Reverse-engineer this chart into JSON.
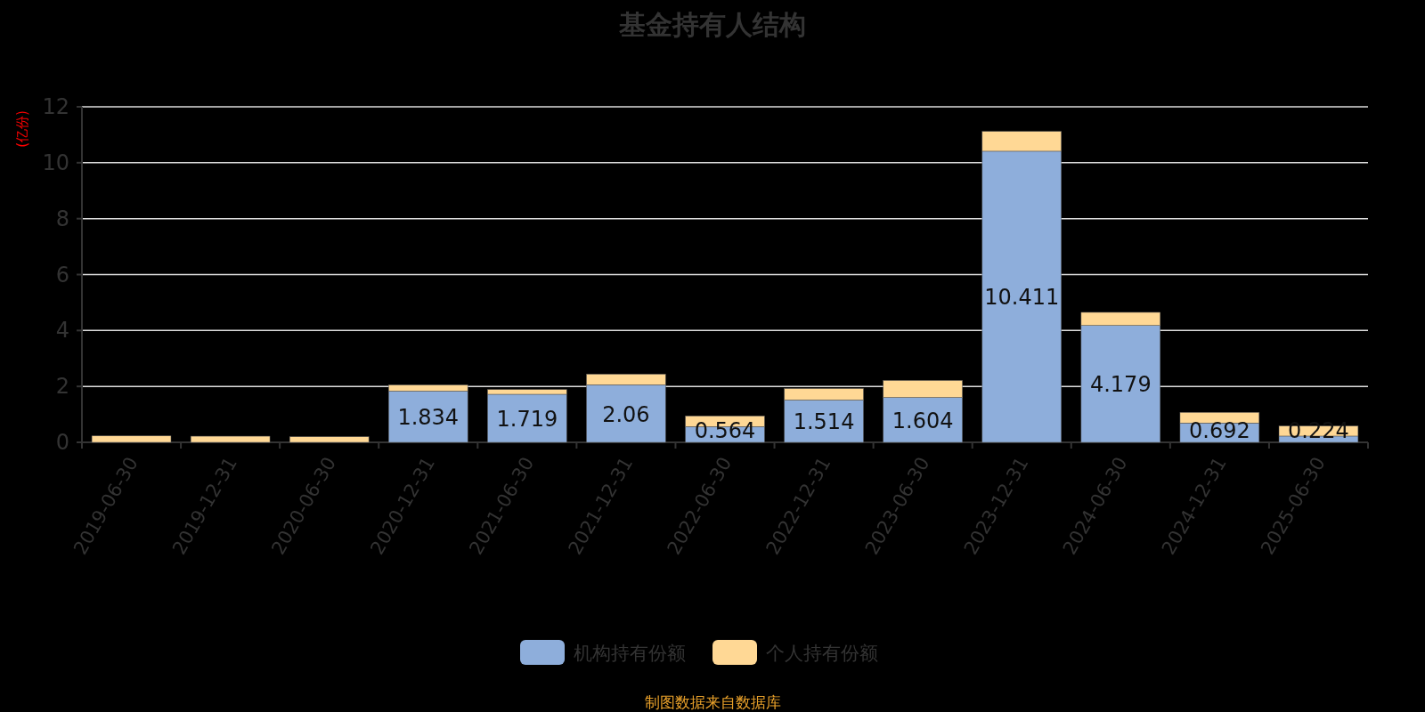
{
  "chart_data": {
    "type": "bar",
    "title": "基金持有人结构",
    "ylabel": "(亿份)",
    "stacked": true,
    "grid": "y",
    "legend": "bottom",
    "categories": [
      "2019-06-30",
      "2019-12-31",
      "2020-06-30",
      "2020-12-31",
      "2021-06-30",
      "2021-12-31",
      "2022-06-30",
      "2022-12-31",
      "2023-06-30",
      "2023-12-31",
      "2024-06-30",
      "2024-12-31",
      "2025-06-30"
    ],
    "series": [
      {
        "name": "机构持有份额",
        "color": "#8eaedb",
        "values": [
          null,
          null,
          null,
          1.834,
          1.719,
          2.06,
          0.564,
          1.514,
          1.604,
          10.411,
          4.179,
          0.692,
          0.224
        ],
        "value_labels": [
          null,
          null,
          null,
          "1.834",
          "1.719",
          "2.06",
          "0.564",
          "1.514",
          "1.604",
          "10.411",
          "4.179",
          "0.692",
          "0.224"
        ]
      },
      {
        "name": "个人持有份额",
        "color": "#ffd895",
        "values": [
          0.23,
          0.22,
          0.2,
          0.22,
          0.17,
          0.38,
          0.38,
          0.41,
          0.61,
          0.71,
          0.47,
          0.38,
          0.36
        ]
      }
    ],
    "ylim": [
      0,
      12
    ],
    "yticks": [
      0,
      2,
      4,
      6,
      8,
      10,
      12
    ],
    "annotations": [
      "制图数据来自数据库"
    ]
  }
}
